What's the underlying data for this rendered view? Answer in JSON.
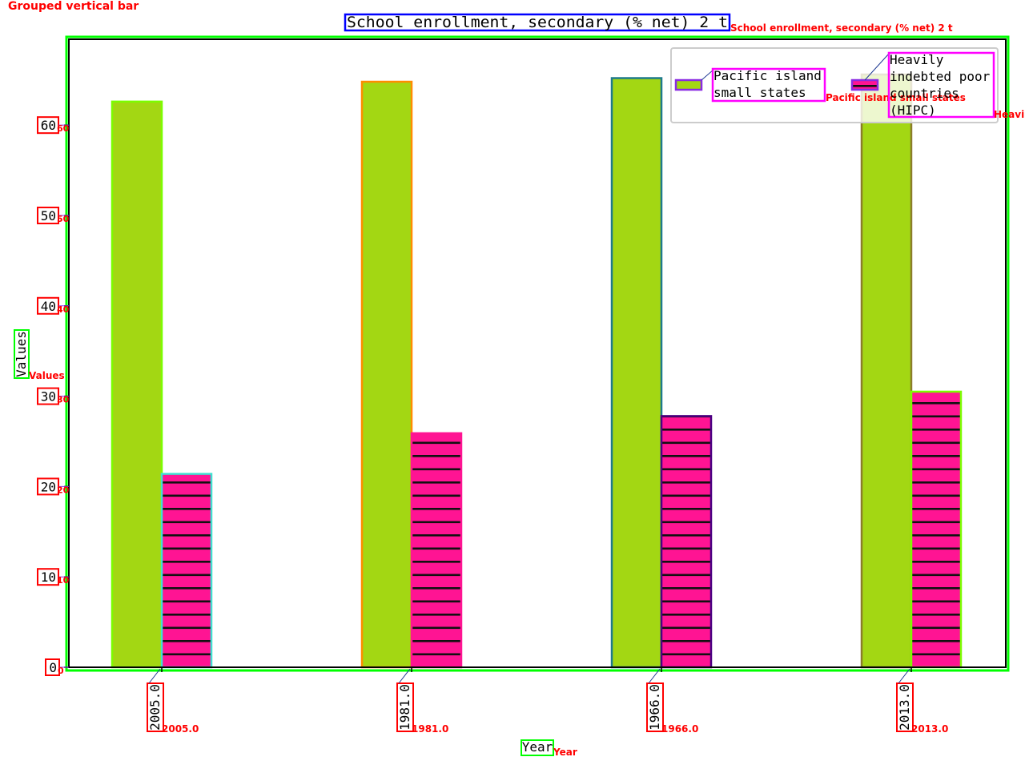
{
  "figure_tag": "Grouped vertical bar",
  "chart_data": {
    "type": "bar",
    "subtype": "grouped",
    "title": "School enrollment, secondary (% net) 2 t",
    "title_annotation": "School enrollment, secondary (% net) 2 t",
    "xlabel": "Year",
    "xlabel_annotation": "Year",
    "ylabel": "Values",
    "ylabel_annotation": "Values",
    "categories": [
      "2005.0",
      "1981.0",
      "1966.0",
      "2013.0"
    ],
    "category_annotations": [
      "2005.0",
      "1981.0",
      "1966.0",
      "2013.0"
    ],
    "ylim": [
      0,
      69.5
    ],
    "yticks": [
      0,
      10,
      20,
      30,
      40,
      50,
      60
    ],
    "ytick_labels": [
      "0",
      "10",
      "20",
      "30",
      "40",
      "50",
      "60"
    ],
    "ytick_annotations": [
      "0",
      "10",
      "20",
      "30",
      "40",
      "50",
      "60"
    ],
    "grid": false,
    "legend_position": "top-right",
    "series": [
      {
        "name": "Pacific island small states",
        "legend_lines": [
          "Pacific island",
          "small states"
        ],
        "legend_annotation": "Pacific island small states",
        "values": [
          62.6,
          64.8,
          65.2,
          65.6
        ],
        "fill": "#a3d713",
        "hatch": "none",
        "edge_colors": [
          "#7cfc00",
          "#ff8c00",
          "#1f7a8c",
          "#8b7d2a"
        ]
      },
      {
        "name": "Heavily indebted poor countries (HIPC)",
        "legend_lines": [
          "Heavily",
          "indebted poor",
          "countries",
          "(HIPC)"
        ],
        "legend_annotation": "Heavily",
        "values": [
          21.4,
          25.9,
          27.8,
          30.5
        ],
        "fill": "#ff1493",
        "hatch": "horizontal",
        "edge_colors": [
          "#40e0d0",
          "#ff1493",
          "#4b0082",
          "#7cfc00"
        ]
      }
    ]
  },
  "colors": {
    "plot_frame": "#000000",
    "outer_box": "#00ff00",
    "tick_box": "#ff0000",
    "title_box": "#0000ff",
    "legend_box": "#ff00ff",
    "annotation_text": "#ff0000",
    "legend_swatch_edge": "#8a2be2"
  }
}
